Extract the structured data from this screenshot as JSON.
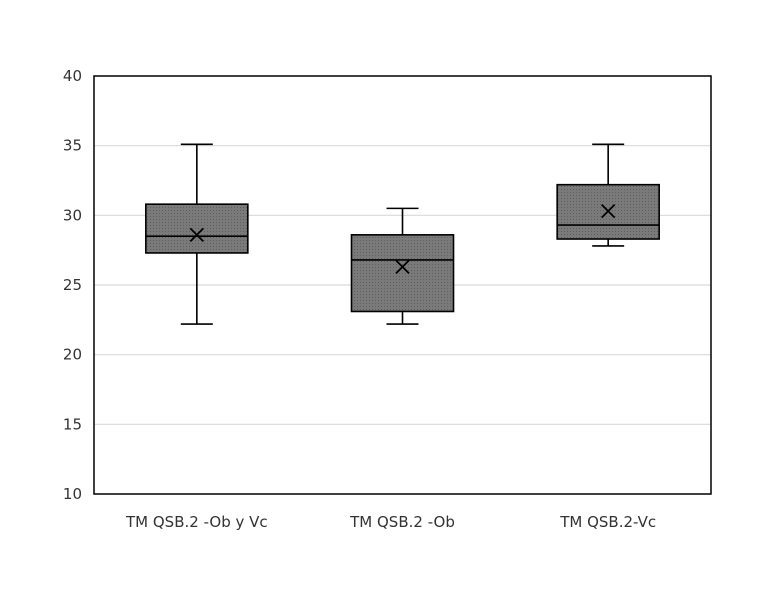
{
  "chart_data": {
    "type": "box",
    "title": "",
    "xlabel": "",
    "ylabel": "",
    "ylim": [
      10,
      40
    ],
    "yticks": [
      10,
      15,
      20,
      25,
      30,
      35,
      40
    ],
    "grid": true,
    "legend": "none",
    "categories": [
      "TM QSB.2 -Ob y Vc",
      "TM QSB.2 -Ob",
      "TM QSB.2-Vc"
    ],
    "boxes": [
      {
        "category": "TM QSB.2 -Ob y Vc",
        "min": 22.2,
        "q1": 27.3,
        "median": 28.5,
        "q3": 30.8,
        "max": 35.1,
        "mean": 28.6
      },
      {
        "category": "TM QSB.2 -Ob",
        "min": 22.2,
        "q1": 23.1,
        "median": 26.8,
        "q3": 28.6,
        "max": 30.5,
        "mean": 26.3
      },
      {
        "category": "TM QSB.2-Vc",
        "min": 27.8,
        "q1": 28.3,
        "median": 29.3,
        "q3": 32.2,
        "max": 35.1,
        "mean": 30.3
      }
    ],
    "colors": {
      "box_fill": "#737373",
      "stroke": "#000000",
      "grid": "#d9d9d9",
      "frame": "#000000"
    }
  }
}
